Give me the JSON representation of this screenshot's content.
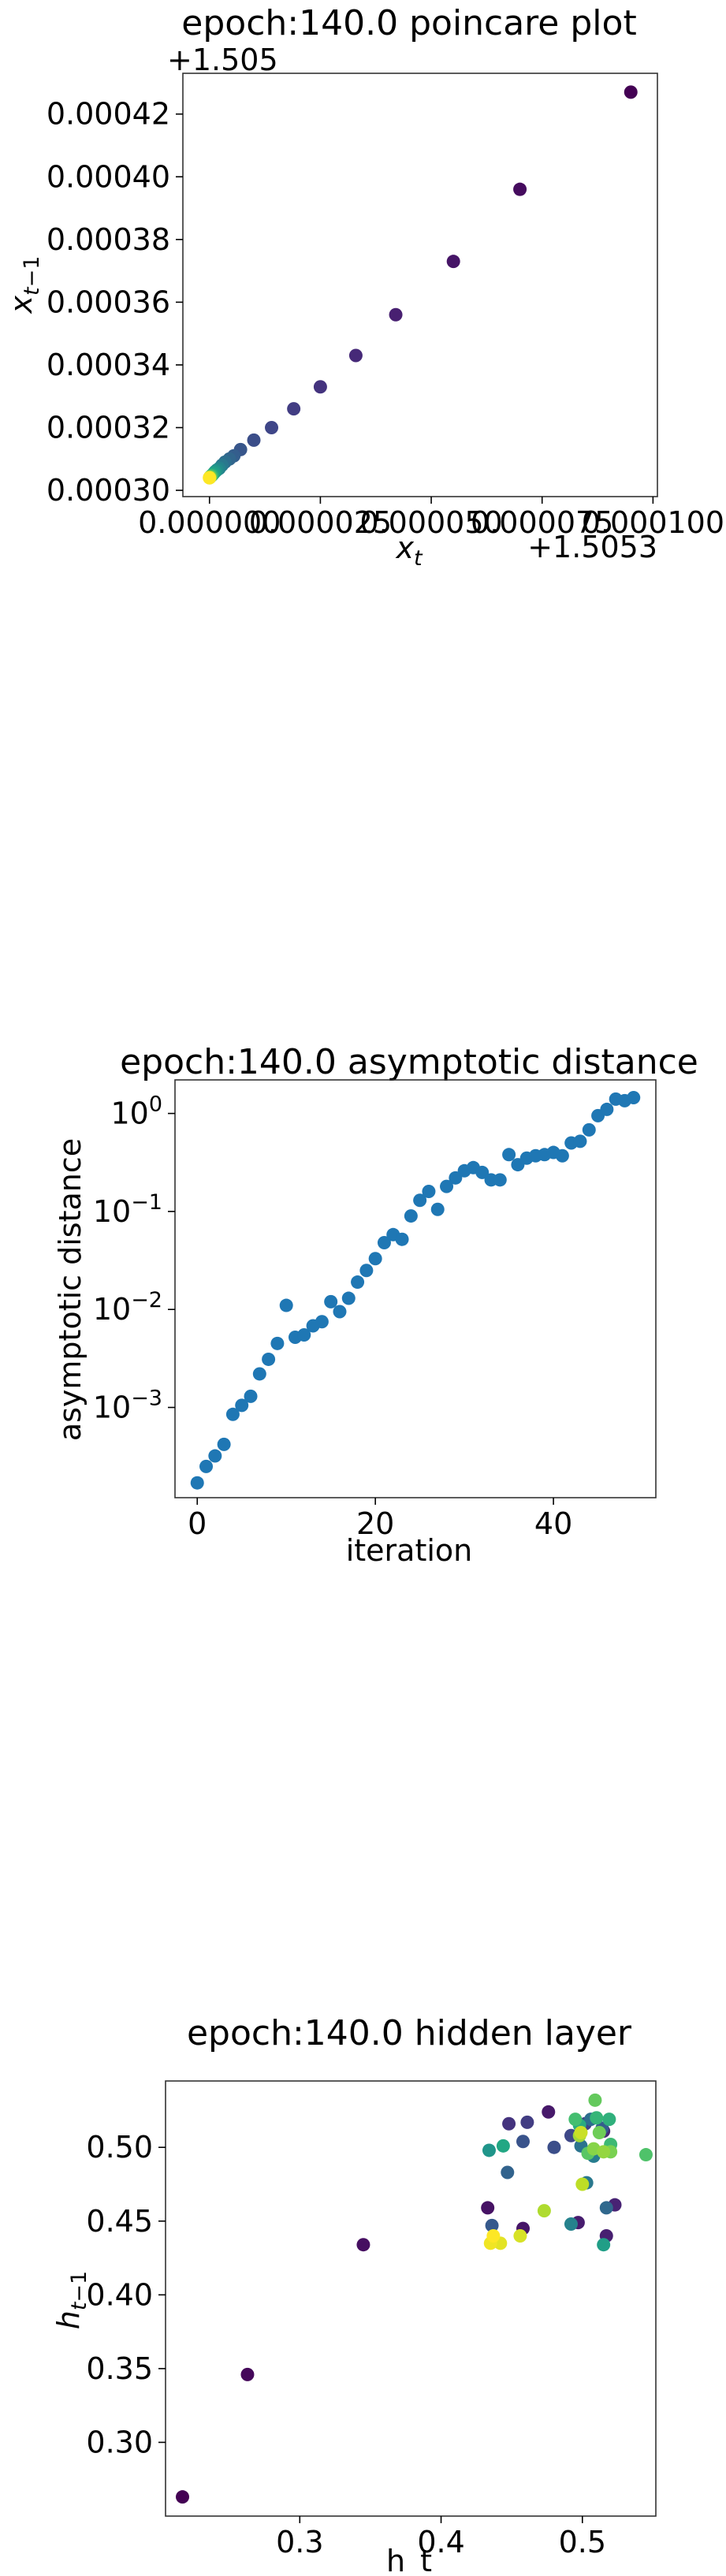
{
  "chart_data": [
    {
      "type": "scatter",
      "title": "epoch:140.0 poincare plot",
      "xlabel": "x_t",
      "ylabel": "x_{t-1}",
      "x_offset_label": "+1.5053",
      "y_offset_label": "+1.505",
      "colormap": "viridis",
      "x_tick_labels": [
        "0.000000",
        "0.000025",
        "0.000050",
        "0.000075",
        "0.000100"
      ],
      "y_tick_labels": [
        "0.00030",
        "0.00032",
        "0.00034",
        "0.00036",
        "0.00038",
        "0.00040",
        "0.00042"
      ],
      "xlim": [
        -6e-06,
        0.000101
      ],
      "ylim": [
        0.000298,
        0.000433
      ],
      "points": [
        {
          "x": 9.5e-05,
          "y": 0.000427,
          "c": 0.0
        },
        {
          "x": 7e-05,
          "y": 0.000396,
          "c": 0.03
        },
        {
          "x": 5.5e-05,
          "y": 0.000373,
          "c": 0.06
        },
        {
          "x": 4.2e-05,
          "y": 0.000356,
          "c": 0.09
        },
        {
          "x": 3.3e-05,
          "y": 0.000343,
          "c": 0.12
        },
        {
          "x": 2.5e-05,
          "y": 0.000333,
          "c": 0.15
        },
        {
          "x": 1.9e-05,
          "y": 0.000326,
          "c": 0.18
        },
        {
          "x": 1.4e-05,
          "y": 0.00032,
          "c": 0.21
        },
        {
          "x": 1e-05,
          "y": 0.000316,
          "c": 0.24
        },
        {
          "x": 7e-06,
          "y": 0.000313,
          "c": 0.27
        },
        {
          "x": 5.5e-06,
          "y": 0.000311,
          "c": 0.3
        },
        {
          "x": 4.5e-06,
          "y": 0.00031,
          "c": 0.33
        },
        {
          "x": 3.5e-06,
          "y": 0.000309,
          "c": 0.36
        },
        {
          "x": 2.8e-06,
          "y": 0.000308,
          "c": 0.4
        },
        {
          "x": 2.2e-06,
          "y": 0.000307,
          "c": 0.44
        },
        {
          "x": 1.7e-06,
          "y": 0.0003065,
          "c": 0.48
        },
        {
          "x": 1.3e-06,
          "y": 0.000306,
          "c": 0.52
        },
        {
          "x": 1e-06,
          "y": 0.0003055,
          "c": 0.56
        },
        {
          "x": 7e-07,
          "y": 0.000305,
          "c": 0.6
        },
        {
          "x": 5e-07,
          "y": 0.0003047,
          "c": 0.65
        },
        {
          "x": 3e-07,
          "y": 0.0003045,
          "c": 0.7
        },
        {
          "x": 2e-07,
          "y": 0.0003043,
          "c": 0.75
        },
        {
          "x": 1e-07,
          "y": 0.0003042,
          "c": 0.8
        },
        {
          "x": 5e-08,
          "y": 0.0003041,
          "c": 0.85
        },
        {
          "x": 2e-08,
          "y": 0.000304,
          "c": 0.9
        },
        {
          "x": 0.0,
          "y": 0.000304,
          "c": 1.0
        }
      ]
    },
    {
      "type": "scatter",
      "title": "epoch:140.0 asymptotic distance",
      "xlabel": "iteration",
      "ylabel": "asymptotic distance",
      "yscale": "log",
      "color": "#1f77b4",
      "x_ticks": [
        0,
        20,
        40
      ],
      "x_tick_labels": [
        "0",
        "20",
        "40"
      ],
      "y_tick_exponents": [
        -3,
        -2,
        -1,
        0
      ],
      "y_tick_base": "10",
      "xlim": [
        -2.5,
        51.5
      ],
      "ylim": [
        0.00012,
        2.2
      ],
      "x": [
        0,
        1,
        2,
        3,
        4,
        5,
        6,
        7,
        8,
        9,
        10,
        11,
        12,
        13,
        14,
        15,
        16,
        17,
        18,
        19,
        20,
        21,
        22,
        23,
        24,
        25,
        26,
        27,
        28,
        29,
        30,
        31,
        32,
        33,
        34,
        35,
        36,
        37,
        38,
        39,
        40,
        41,
        42,
        43,
        44,
        45,
        46,
        47,
        48,
        49
      ],
      "y": [
        0.00017,
        0.00025,
        0.00032,
        0.00042,
        0.00085,
        0.00105,
        0.0013,
        0.0022,
        0.0031,
        0.0045,
        0.011,
        0.0052,
        0.0055,
        0.0068,
        0.0075,
        0.012,
        0.0095,
        0.013,
        0.019,
        0.025,
        0.033,
        0.048,
        0.058,
        0.052,
        0.09,
        0.13,
        0.16,
        0.105,
        0.18,
        0.22,
        0.26,
        0.28,
        0.25,
        0.21,
        0.21,
        0.38,
        0.3,
        0.35,
        0.37,
        0.38,
        0.4,
        0.37,
        0.5,
        0.52,
        0.68,
        0.95,
        1.1,
        1.4,
        1.35,
        1.45
      ]
    },
    {
      "type": "scatter",
      "title": "epoch:140.0 hidden layer",
      "xlabel": "h_t",
      "ylabel": "h_{t-1}",
      "colormap": "viridis",
      "x_ticks": [
        0.3,
        0.4,
        0.5
      ],
      "x_tick_labels": [
        "0.3",
        "0.4",
        "0.5"
      ],
      "y_ticks": [
        0.3,
        0.35,
        0.4,
        0.45,
        0.5
      ],
      "y_tick_labels": [
        "0.30",
        "0.35",
        "0.40",
        "0.45",
        "0.50"
      ],
      "xlim": [
        0.205,
        0.552
      ],
      "ylim": [
        0.25,
        0.545
      ],
      "points": [
        {
          "x": 0.217,
          "y": 0.263,
          "c": 0.0
        },
        {
          "x": 0.263,
          "y": 0.346,
          "c": 0.02
        },
        {
          "x": 0.345,
          "y": 0.434,
          "c": 0.04
        },
        {
          "x": 0.433,
          "y": 0.459,
          "c": 0.05
        },
        {
          "x": 0.458,
          "y": 0.445,
          "c": 0.06
        },
        {
          "x": 0.476,
          "y": 0.524,
          "c": 0.07
        },
        {
          "x": 0.497,
          "y": 0.449,
          "c": 0.08
        },
        {
          "x": 0.517,
          "y": 0.44,
          "c": 0.09
        },
        {
          "x": 0.523,
          "y": 0.461,
          "c": 0.1
        },
        {
          "x": 0.515,
          "y": 0.511,
          "c": 0.12
        },
        {
          "x": 0.448,
          "y": 0.516,
          "c": 0.15
        },
        {
          "x": 0.461,
          "y": 0.517,
          "c": 0.18
        },
        {
          "x": 0.502,
          "y": 0.516,
          "c": 0.2
        },
        {
          "x": 0.492,
          "y": 0.508,
          "c": 0.22
        },
        {
          "x": 0.48,
          "y": 0.5,
          "c": 0.24
        },
        {
          "x": 0.458,
          "y": 0.504,
          "c": 0.26
        },
        {
          "x": 0.436,
          "y": 0.447,
          "c": 0.28
        },
        {
          "x": 0.514,
          "y": 0.513,
          "c": 0.3
        },
        {
          "x": 0.447,
          "y": 0.483,
          "c": 0.32
        },
        {
          "x": 0.517,
          "y": 0.459,
          "c": 0.34
        },
        {
          "x": 0.506,
          "y": 0.519,
          "c": 0.36
        },
        {
          "x": 0.499,
          "y": 0.501,
          "c": 0.38
        },
        {
          "x": 0.503,
          "y": 0.476,
          "c": 0.4
        },
        {
          "x": 0.508,
          "y": 0.494,
          "c": 0.42
        },
        {
          "x": 0.492,
          "y": 0.448,
          "c": 0.44
        },
        {
          "x": 0.434,
          "y": 0.498,
          "c": 0.52
        },
        {
          "x": 0.515,
          "y": 0.434,
          "c": 0.56
        },
        {
          "x": 0.444,
          "y": 0.501,
          "c": 0.6
        },
        {
          "x": 0.498,
          "y": 0.515,
          "c": 0.62
        },
        {
          "x": 0.519,
          "y": 0.519,
          "c": 0.64
        },
        {
          "x": 0.51,
          "y": 0.52,
          "c": 0.66
        },
        {
          "x": 0.52,
          "y": 0.502,
          "c": 0.68
        },
        {
          "x": 0.495,
          "y": 0.519,
          "c": 0.7
        },
        {
          "x": 0.545,
          "y": 0.495,
          "c": 0.72
        },
        {
          "x": 0.504,
          "y": 0.496,
          "c": 0.74
        },
        {
          "x": 0.509,
          "y": 0.532,
          "c": 0.76
        },
        {
          "x": 0.512,
          "y": 0.51,
          "c": 0.78
        },
        {
          "x": 0.52,
          "y": 0.497,
          "c": 0.8
        },
        {
          "x": 0.508,
          "y": 0.499,
          "c": 0.82
        },
        {
          "x": 0.515,
          "y": 0.497,
          "c": 0.84
        },
        {
          "x": 0.498,
          "y": 0.508,
          "c": 0.86
        },
        {
          "x": 0.473,
          "y": 0.457,
          "c": 0.88
        },
        {
          "x": 0.5,
          "y": 0.475,
          "c": 0.9
        },
        {
          "x": 0.499,
          "y": 0.51,
          "c": 0.92
        },
        {
          "x": 0.456,
          "y": 0.44,
          "c": 0.94
        },
        {
          "x": 0.442,
          "y": 0.435,
          "c": 0.96
        },
        {
          "x": 0.435,
          "y": 0.435,
          "c": 0.98
        },
        {
          "x": 0.437,
          "y": 0.44,
          "c": 1.0
        }
      ]
    }
  ]
}
